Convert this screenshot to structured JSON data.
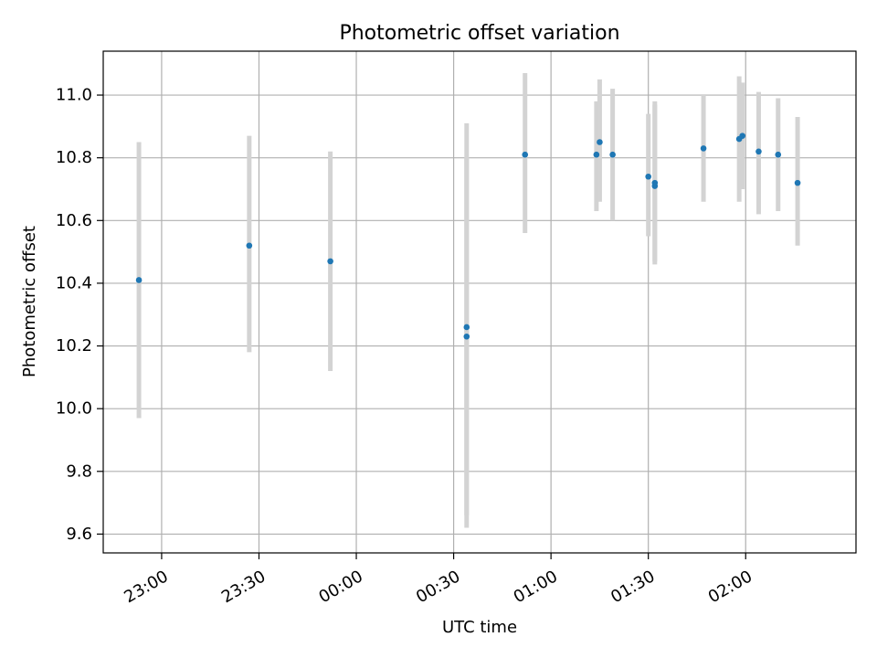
{
  "chart_data": {
    "type": "scatter",
    "title": "Photometric offset variation",
    "xlabel": "UTC time",
    "ylabel": "Photometric offset",
    "x_start": "22:42",
    "xlim": [
      "22:42",
      "02:34"
    ],
    "ylim": [
      9.54,
      11.14
    ],
    "x_ticks": [
      "23:00",
      "23:30",
      "00:00",
      "00:30",
      "01:00",
      "01:30",
      "02:00"
    ],
    "y_ticks": [
      9.6,
      9.8,
      10.0,
      10.2,
      10.4,
      10.6,
      10.8,
      11.0
    ],
    "grid": true,
    "colors": {
      "point": "#1f77b4",
      "errorbar": "#d3d3d3",
      "grid": "#b0b0b0"
    },
    "points": [
      {
        "x": "22:53",
        "y": 10.41,
        "lo": 9.97,
        "hi": 10.85
      },
      {
        "x": "23:27",
        "y": 10.52,
        "lo": 10.18,
        "hi": 10.87
      },
      {
        "x": "23:52",
        "y": 10.47,
        "lo": 10.12,
        "hi": 10.82
      },
      {
        "x": "00:34",
        "y": 10.23,
        "lo": 9.66,
        "hi": 10.8
      },
      {
        "x": "00:34",
        "y": 10.26,
        "lo": 9.62,
        "hi": 10.91
      },
      {
        "x": "00:52",
        "y": 10.81,
        "lo": 10.56,
        "hi": 11.07
      },
      {
        "x": "01:14",
        "y": 10.81,
        "lo": 10.63,
        "hi": 10.98
      },
      {
        "x": "01:15",
        "y": 10.85,
        "lo": 10.66,
        "hi": 11.05
      },
      {
        "x": "01:19",
        "y": 10.81,
        "lo": 10.6,
        "hi": 11.02
      },
      {
        "x": "01:30",
        "y": 10.74,
        "lo": 10.55,
        "hi": 10.94
      },
      {
        "x": "01:32",
        "y": 10.71,
        "lo": 10.46,
        "hi": 10.97
      },
      {
        "x": "01:32",
        "y": 10.72,
        "lo": 10.47,
        "hi": 10.98
      },
      {
        "x": "01:47",
        "y": 10.83,
        "lo": 10.66,
        "hi": 11.0
      },
      {
        "x": "01:58",
        "y": 10.86,
        "lo": 10.66,
        "hi": 11.06
      },
      {
        "x": "01:59",
        "y": 10.87,
        "lo": 10.7,
        "hi": 11.04
      },
      {
        "x": "02:04",
        "y": 10.82,
        "lo": 10.62,
        "hi": 11.01
      },
      {
        "x": "02:10",
        "y": 10.81,
        "lo": 10.63,
        "hi": 10.99
      },
      {
        "x": "02:16",
        "y": 10.72,
        "lo": 10.52,
        "hi": 10.93
      }
    ]
  }
}
